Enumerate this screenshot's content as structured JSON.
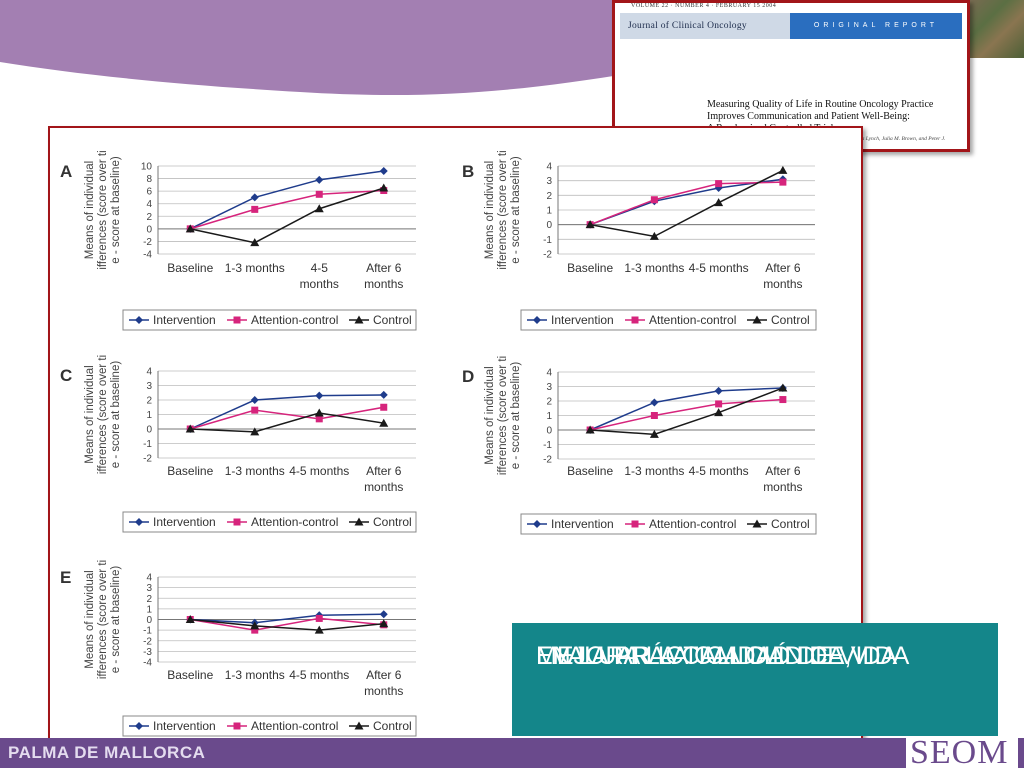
{
  "footer": {
    "city": "PALMA DE MALLORCA",
    "logo": "SEOM"
  },
  "journal": {
    "volume_line": "VOLUME 22 · NUMBER 4 · FEBRUARY 15 2004",
    "name": "Journal of Clinical Oncology",
    "section": "ORIGINAL REPORT",
    "title_lines": [
      "Measuring Quality of Life in Routine Oncology Practice",
      "Improves Communication and Patient Well-Being:",
      "A Randomized Controlled Trial"
    ],
    "authors": "Galina Velikova, Laura Booth, Adam B. Smith, Paul M. Brown, Pamela Lynch, Julia M. Brown, and Peter J. Selby"
  },
  "callout": {
    "lines": [
      "EVALUAR LA CALIDAD DE VIDA",
      "EN LA PRÁCTICA CLÍNICA,",
      "MEJORA LA CALIDAD DE VIDA"
    ]
  },
  "colors": {
    "intervention": "#1f3c8c",
    "attention_control": "#d6247c",
    "control": "#1a1a1a",
    "accent_red": "#a21519",
    "teal": "#14868a",
    "purple": "#6a4a8c"
  },
  "chart_data": [
    {
      "type": "line",
      "panel_label": "A",
      "ylabel": "Means of individual differences (score over time - score at baseline)",
      "categories": [
        "Baseline",
        "1-3 months",
        "4-5 months",
        "After 6 months"
      ],
      "ylim": [
        -4,
        10
      ],
      "yticks": [
        -4,
        -2,
        0,
        2,
        4,
        6,
        8,
        10
      ],
      "series": [
        {
          "name": "Intervention",
          "values": [
            0,
            5,
            7.8,
            9.2
          ]
        },
        {
          "name": "Attention-control",
          "values": [
            0,
            3.1,
            5.5,
            6.1
          ]
        },
        {
          "name": "Control",
          "values": [
            0,
            -2.2,
            3.2,
            6.5
          ]
        }
      ]
    },
    {
      "type": "line",
      "panel_label": "B",
      "ylabel": "Means of individual differences (score over time - score at baseline)",
      "categories": [
        "Baseline",
        "1-3 months",
        "4-5 months",
        "After 6 months"
      ],
      "ylim": [
        -2,
        4
      ],
      "yticks": [
        -2,
        -1,
        0,
        1,
        2,
        3,
        4
      ],
      "series": [
        {
          "name": "Intervention",
          "values": [
            0,
            1.6,
            2.5,
            3.1
          ]
        },
        {
          "name": "Attention-control",
          "values": [
            0,
            1.7,
            2.8,
            2.9
          ]
        },
        {
          "name": "Control",
          "values": [
            0,
            -0.8,
            1.5,
            3.7
          ]
        }
      ]
    },
    {
      "type": "line",
      "panel_label": "C",
      "ylabel": "Means of individual differences (score over time - score at baseline)",
      "categories": [
        "Baseline",
        "1-3 months",
        "4-5 months",
        "After 6 months"
      ],
      "ylim": [
        -2,
        4
      ],
      "yticks": [
        -2,
        -1,
        0,
        1,
        2,
        3,
        4
      ],
      "series": [
        {
          "name": "Intervention",
          "values": [
            0,
            2,
            2.3,
            2.35
          ]
        },
        {
          "name": "Attention-control",
          "values": [
            0,
            1.3,
            0.7,
            1.5
          ]
        },
        {
          "name": "Control",
          "values": [
            0,
            -0.2,
            1.1,
            0.4
          ]
        }
      ]
    },
    {
      "type": "line",
      "panel_label": "D",
      "ylabel": "Means of individual differences (score over time - score at baseline)",
      "categories": [
        "Baseline",
        "1-3 months",
        "4-5 months",
        "After 6 months"
      ],
      "ylim": [
        -2,
        4
      ],
      "yticks": [
        -2,
        -1,
        0,
        1,
        2,
        3,
        4
      ],
      "series": [
        {
          "name": "Intervention",
          "values": [
            0,
            1.9,
            2.7,
            2.9
          ]
        },
        {
          "name": "Attention-control",
          "values": [
            0,
            1,
            1.8,
            2.1
          ]
        },
        {
          "name": "Control",
          "values": [
            0,
            -0.3,
            1.2,
            2.9
          ]
        }
      ]
    },
    {
      "type": "line",
      "panel_label": "E",
      "ylabel": "Means of individual differences (score over time - score at baseline)",
      "categories": [
        "Baseline",
        "1-3 months",
        "4-5 months",
        "After 6 months"
      ],
      "ylim": [
        -4,
        4
      ],
      "yticks": [
        -4,
        -3,
        -2,
        -1,
        0,
        1,
        2,
        3,
        4
      ],
      "series": [
        {
          "name": "Intervention",
          "values": [
            0,
            -0.3,
            0.4,
            0.5
          ]
        },
        {
          "name": "Attention-control",
          "values": [
            0,
            -1,
            0.1,
            -0.5
          ]
        },
        {
          "name": "Control",
          "values": [
            0,
            -0.6,
            -1,
            -0.4
          ]
        }
      ]
    }
  ]
}
